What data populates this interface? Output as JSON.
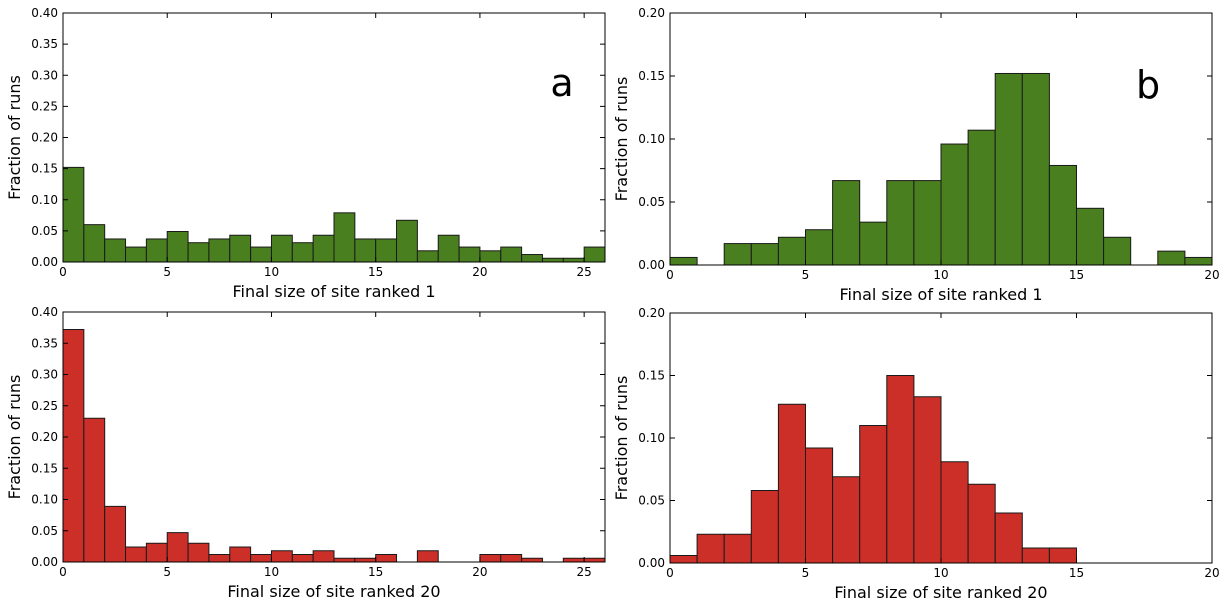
{
  "chart_data": [
    {
      "type": "bar",
      "panel_label": "a",
      "xlabel": "Final size of site ranked 1",
      "ylabel": "Fraction of runs",
      "xlim": [
        0,
        26
      ],
      "ylim": [
        0,
        0.4
      ],
      "xticks": [
        0,
        5,
        10,
        15,
        20,
        25
      ],
      "yticks": [
        0.0,
        0.05,
        0.1,
        0.15,
        0.2,
        0.25,
        0.3,
        0.35,
        0.4
      ],
      "bin_width": 1,
      "bin_starts": [
        0,
        1,
        2,
        3,
        4,
        5,
        6,
        7,
        8,
        9,
        10,
        11,
        12,
        13,
        14,
        15,
        16,
        17,
        18,
        19,
        20,
        21,
        22,
        23,
        24,
        25
      ],
      "values": [
        0.152,
        0.06,
        0.037,
        0.024,
        0.037,
        0.049,
        0.031,
        0.037,
        0.043,
        0.024,
        0.043,
        0.031,
        0.043,
        0.079,
        0.037,
        0.037,
        0.067,
        0.018,
        0.043,
        0.024,
        0.018,
        0.024,
        0.012,
        0.006,
        0.006,
        0.024
      ],
      "color": "#4a7f1f"
    },
    {
      "type": "bar",
      "panel_label": "b",
      "xlabel": "Final size of site ranked 1",
      "ylabel": "Fraction of runs",
      "xlim": [
        0,
        20
      ],
      "ylim": [
        0,
        0.2
      ],
      "xticks": [
        0,
        5,
        10,
        15,
        20
      ],
      "yticks": [
        0.0,
        0.05,
        0.1,
        0.15,
        0.2
      ],
      "bin_width": 1,
      "bin_starts": [
        0,
        1,
        2,
        3,
        4,
        5,
        6,
        7,
        8,
        9,
        10,
        11,
        12,
        13,
        14,
        15,
        16,
        17,
        18,
        19
      ],
      "values": [
        0.006,
        0,
        0.017,
        0.017,
        0.022,
        0.028,
        0.067,
        0.034,
        0.067,
        0.067,
        0.096,
        0.107,
        0.152,
        0.152,
        0.079,
        0.045,
        0.022,
        0,
        0.011,
        0.006
      ],
      "color": "#4a7f1f"
    },
    {
      "type": "bar",
      "panel_label": "",
      "xlabel": "Final size of site ranked 20",
      "ylabel": "Fraction of runs",
      "xlim": [
        0,
        26
      ],
      "ylim": [
        0,
        0.4
      ],
      "xticks": [
        0,
        5,
        10,
        15,
        20,
        25
      ],
      "yticks": [
        0.0,
        0.05,
        0.1,
        0.15,
        0.2,
        0.25,
        0.3,
        0.35,
        0.4
      ],
      "bin_width": 1,
      "bin_starts": [
        0,
        1,
        2,
        3,
        4,
        5,
        6,
        7,
        8,
        9,
        10,
        11,
        12,
        13,
        14,
        15,
        16,
        17,
        18,
        19,
        20,
        21,
        22,
        23,
        24,
        25
      ],
      "values": [
        0.372,
        0.23,
        0.089,
        0.024,
        0.03,
        0.047,
        0.03,
        0.012,
        0.024,
        0.012,
        0.018,
        0.012,
        0.018,
        0.006,
        0.006,
        0.012,
        0,
        0.018,
        0,
        0,
        0.012,
        0.012,
        0.006,
        0,
        0.006,
        0.006
      ],
      "color": "#cc2f27"
    },
    {
      "type": "bar",
      "panel_label": "",
      "xlabel": "Final size of site ranked 20",
      "ylabel": "Fraction of runs",
      "xlim": [
        0,
        20
      ],
      "ylim": [
        0,
        0.2
      ],
      "xticks": [
        0,
        5,
        10,
        15,
        20
      ],
      "yticks": [
        0.0,
        0.05,
        0.1,
        0.15,
        0.2
      ],
      "bin_width": 1,
      "bin_starts": [
        0,
        1,
        2,
        3,
        4,
        5,
        6,
        7,
        8,
        9,
        10,
        11,
        12,
        13,
        14,
        15,
        16,
        17,
        18,
        19
      ],
      "values": [
        0.006,
        0.023,
        0.023,
        0.058,
        0.127,
        0.092,
        0.069,
        0.11,
        0.15,
        0.133,
        0.081,
        0.063,
        0.04,
        0.012,
        0.012,
        0,
        0,
        0,
        0,
        0
      ],
      "color": "#cc2f27"
    }
  ]
}
